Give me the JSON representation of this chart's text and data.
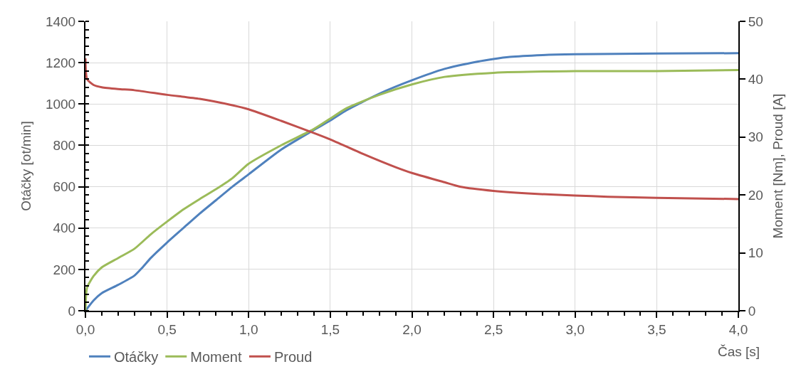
{
  "chart_data": {
    "type": "line",
    "xlabel": "Čas [s]",
    "ylabel": "Otáčky [ot/min]",
    "y2label": "Moment [Nm], Proud [A]",
    "xlim": [
      0,
      4
    ],
    "xticks": [
      {
        "value": 0,
        "label": "0,0"
      },
      {
        "value": 0.5,
        "label": "0,5"
      },
      {
        "value": 1,
        "label": "1,0"
      },
      {
        "value": 1.5,
        "label": "1,5"
      },
      {
        "value": 2,
        "label": "2,0"
      },
      {
        "value": 2.5,
        "label": "2,5"
      },
      {
        "value": 3,
        "label": "3,0"
      },
      {
        "value": 3.5,
        "label": "3,5"
      },
      {
        "value": 4,
        "label": "4,0"
      }
    ],
    "ylim": [
      0,
      1400
    ],
    "yticks": [
      0,
      200,
      400,
      600,
      800,
      1000,
      1200,
      1400
    ],
    "y2lim": [
      0,
      50
    ],
    "y2ticks": [
      0,
      10,
      20,
      30,
      40,
      50
    ],
    "grid": true,
    "legend": "bottom left",
    "marker": "none",
    "line_style": "solid",
    "series": [
      {
        "name": "Otáčky",
        "color": "#4f81bd",
        "x": [
          0,
          0.05,
          0.1,
          0.2,
          0.3,
          0.35,
          0.4,
          0.5,
          0.6,
          0.7,
          0.8,
          0.9,
          1.0,
          1.2,
          1.4,
          1.5,
          1.6,
          1.8,
          2.0,
          2.2,
          2.4,
          2.5,
          2.6,
          2.8,
          3.0,
          3.5,
          4.0
        ],
        "values": [
          0,
          50,
          85,
          125,
          170,
          210,
          255,
          330,
          400,
          470,
          535,
          600,
          660,
          780,
          875,
          920,
          970,
          1050,
          1115,
          1170,
          1205,
          1218,
          1228,
          1237,
          1241,
          1244,
          1246
        ]
      },
      {
        "name": "Moment",
        "color": "#9bbb59",
        "axis": "y2",
        "x": [
          0,
          0.01,
          0.05,
          0.1,
          0.2,
          0.3,
          0.4,
          0.5,
          0.6,
          0.7,
          0.8,
          0.9,
          1.0,
          1.2,
          1.4,
          1.5,
          1.6,
          1.8,
          2.0,
          2.2,
          2.5,
          3.0,
          3.5,
          4.0
        ],
        "values": [
          0,
          4,
          6,
          7.5,
          9.1,
          10.7,
          13.2,
          15.4,
          17.5,
          19.3,
          21,
          22.9,
          25.4,
          28.6,
          31.4,
          33.2,
          35,
          37.3,
          39.1,
          40.4,
          41.1,
          41.4,
          41.4,
          41.6
        ]
      },
      {
        "name": "Proud",
        "color": "#c0504d",
        "axis": "y2",
        "x": [
          0,
          0.01,
          0.05,
          0.1,
          0.2,
          0.3,
          0.5,
          0.7,
          0.9,
          1.0,
          1.2,
          1.4,
          1.5,
          1.7,
          1.9,
          2.0,
          2.2,
          2.3,
          2.5,
          2.75,
          3.0,
          3.2,
          3.5,
          4.0
        ],
        "values": [
          43.6,
          40,
          39,
          38.6,
          38.3,
          38.1,
          37.3,
          36.6,
          35.5,
          34.8,
          32.8,
          30.7,
          29.6,
          27.1,
          24.8,
          23.8,
          22.2,
          21.4,
          20.7,
          20.2,
          19.9,
          19.7,
          19.5,
          19.3
        ]
      }
    ]
  }
}
